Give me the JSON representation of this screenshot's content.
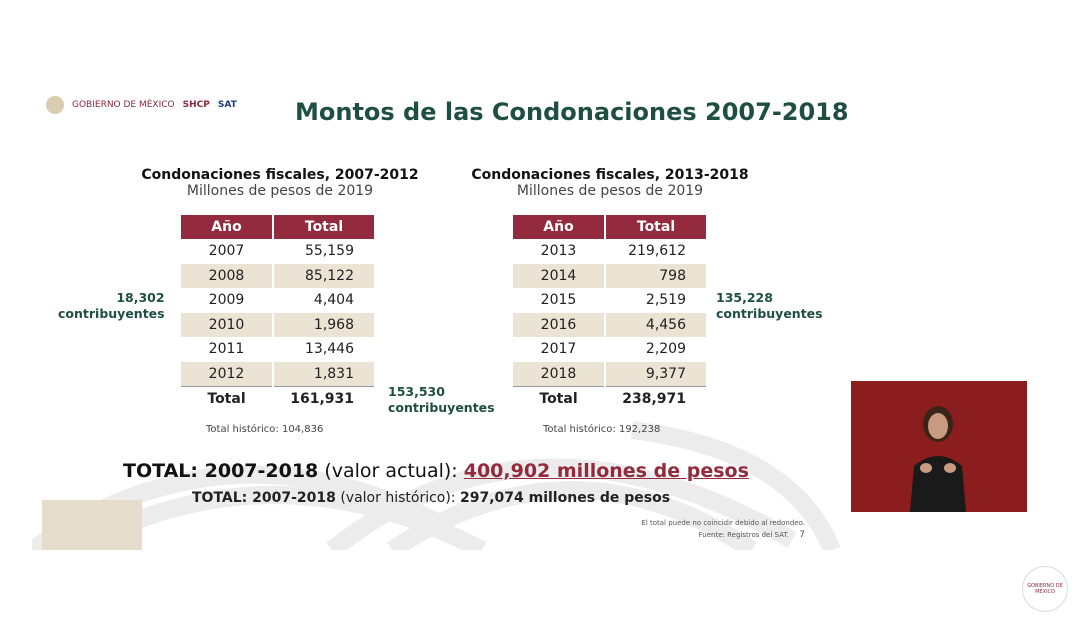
{
  "header": {
    "logos": [
      "GOBIERNO DE MÉXICO",
      "SHCP",
      "SAT"
    ],
    "title": "Montos de las Condonaciones 2007-2018"
  },
  "left": {
    "title": "Condonaciones fiscales, 2007-2012",
    "subtitle": "Millones de pesos de 2019",
    "columns": [
      "Año",
      "Total"
    ],
    "rows": [
      [
        "2007",
        "55,159"
      ],
      [
        "2008",
        "85,122"
      ],
      [
        "2009",
        "4,404"
      ],
      [
        "2010",
        "1,968"
      ],
      [
        "2011",
        "13,446"
      ],
      [
        "2012",
        "1,831"
      ]
    ],
    "total": [
      "Total",
      "161,931"
    ],
    "historic": "Total histórico: 104,836",
    "contrib_n": "18,302",
    "contrib_l": "contribuyentes"
  },
  "right": {
    "title": "Condonaciones fiscales, 2013-2018",
    "subtitle": "Millones de pesos de 2019",
    "columns": [
      "Año",
      "Total"
    ],
    "rows": [
      [
        "2013",
        "219,612"
      ],
      [
        "2014",
        "798"
      ],
      [
        "2015",
        "2,519"
      ],
      [
        "2016",
        "4,456"
      ],
      [
        "2017",
        "2,209"
      ],
      [
        "2018",
        "9,377"
      ]
    ],
    "total": [
      "Total",
      "238,971"
    ],
    "historic": "Total histórico: 192,238",
    "contrib_n": "135,228",
    "contrib_l": "contribuyentes"
  },
  "middle": {
    "contrib_n": "153,530",
    "contrib_l": "contribuyentes"
  },
  "summary": {
    "big_label": "TOTAL: 2007-2018",
    "big_paren": " (valor actual): ",
    "big_value": "400,902 millones de pesos",
    "small_label": "TOTAL: 2007-2018",
    "small_paren": " (valor histórico): ",
    "small_value": "297,074 millones de pesos"
  },
  "footer": {
    "note": "El total puede no coincidir debido al redondeo.",
    "source": "Fuente: Registros del SAT.",
    "page": "7"
  },
  "badge": "GOBIERNO DE MÉXICO",
  "colors": {
    "accent": "#942a3d",
    "title_green": "#1f4f40",
    "row_alt": "#ebe3d3"
  }
}
